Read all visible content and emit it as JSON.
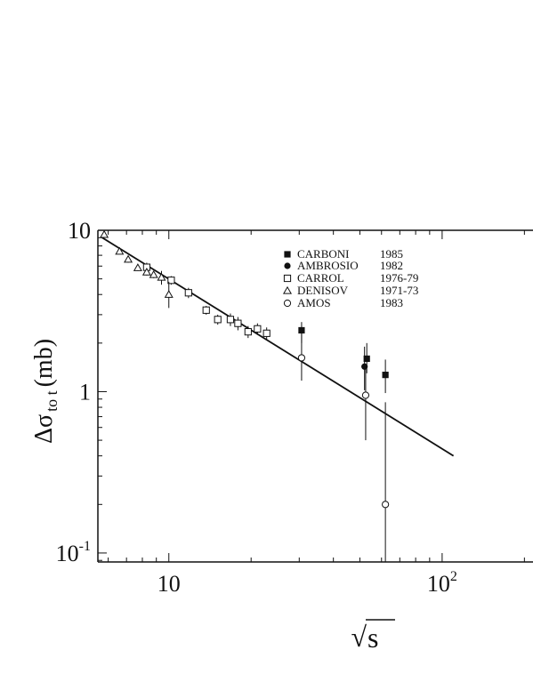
{
  "chart_data": {
    "type": "scatter",
    "xscale": "log",
    "yscale": "log",
    "xlim": [
      5.5,
      215
    ],
    "ylim": [
      0.088,
      10
    ],
    "grid": false,
    "legend_position": "top-center",
    "ylabel": {
      "main": "Δσ",
      "subscript": "to t",
      "unit": "(mb)"
    },
    "xlabel": {
      "radical": "√",
      "symbol": "s"
    },
    "x_ticks": [
      {
        "value": 10,
        "label": "10",
        "base": "",
        "exp": ""
      },
      {
        "value": 100,
        "label": "",
        "base": "10",
        "exp": "2"
      }
    ],
    "y_ticks": [
      {
        "value": 10,
        "label": "10",
        "base": "",
        "exp": ""
      },
      {
        "value": 1,
        "label": "1",
        "base": "",
        "exp": ""
      },
      {
        "value": 0.1,
        "label": "",
        "base": "10",
        "exp": "-1"
      }
    ],
    "fit_line": {
      "x": [
        5.65,
        110
      ],
      "y": [
        9.1,
        0.4
      ]
    },
    "series": [
      {
        "name": "CARBONI",
        "year": "1985",
        "marker": "filled-square",
        "points": [
          {
            "x": 30.6,
            "y": 2.4,
            "ylo": 2.0,
            "yhi": 2.7
          },
          {
            "x": 53.0,
            "y": 1.6,
            "ylo": 1.3,
            "yhi": 2.0
          },
          {
            "x": 62.0,
            "y": 1.27,
            "ylo": 0.98,
            "yhi": 1.58
          }
        ]
      },
      {
        "name": "AMBROSIO",
        "year": "1982",
        "marker": "filled-circle",
        "points": [
          {
            "x": 52.0,
            "y": 1.43,
            "ylo": 1.02,
            "yhi": 1.9
          }
        ]
      },
      {
        "name": "CARROL",
        "year": "1976-79",
        "marker": "open-square",
        "points": [
          {
            "x": 8.3,
            "y": 5.9,
            "ylo": 5.5,
            "yhi": 6.3
          },
          {
            "x": 10.2,
            "y": 4.9,
            "ylo": 4.6,
            "yhi": 5.2
          },
          {
            "x": 11.8,
            "y": 4.1,
            "ylo": 3.8,
            "yhi": 4.4
          },
          {
            "x": 13.7,
            "y": 3.2,
            "ylo": 3.0,
            "yhi": 3.4
          },
          {
            "x": 15.1,
            "y": 2.8,
            "ylo": 2.6,
            "yhi": 3.0
          },
          {
            "x": 16.8,
            "y": 2.8,
            "ylo": 2.55,
            "yhi": 3.05
          },
          {
            "x": 17.9,
            "y": 2.65,
            "ylo": 2.4,
            "yhi": 2.9
          },
          {
            "x": 19.5,
            "y": 2.35,
            "ylo": 2.15,
            "yhi": 2.55
          },
          {
            "x": 21.1,
            "y": 2.45,
            "ylo": 2.25,
            "yhi": 2.65
          },
          {
            "x": 22.8,
            "y": 2.3,
            "ylo": 2.1,
            "yhi": 2.5
          }
        ]
      },
      {
        "name": "DENISOV",
        "year": "1971-73",
        "marker": "open-triangle",
        "points": [
          {
            "x": 5.8,
            "y": 9.4,
            "ylo": 9.0,
            "yhi": 9.8
          },
          {
            "x": 6.6,
            "y": 7.4,
            "ylo": 7.1,
            "yhi": 7.7
          },
          {
            "x": 7.1,
            "y": 6.6,
            "ylo": 6.3,
            "yhi": 6.9
          },
          {
            "x": 7.7,
            "y": 5.85,
            "ylo": 5.6,
            "yhi": 6.1
          },
          {
            "x": 8.3,
            "y": 5.5,
            "ylo": 5.25,
            "yhi": 5.75
          },
          {
            "x": 8.8,
            "y": 5.3,
            "ylo": 5.05,
            "yhi": 5.55
          },
          {
            "x": 9.4,
            "y": 5.1,
            "ylo": 4.6,
            "yhi": 5.6
          },
          {
            "x": 10.0,
            "y": 4.0,
            "ylo": 3.3,
            "yhi": 4.8
          }
        ]
      },
      {
        "name": "AMOS",
        "year": "1983",
        "marker": "open-circle",
        "points": [
          {
            "x": 30.6,
            "y": 1.62,
            "ylo": 1.17,
            "yhi": 2.4
          },
          {
            "x": 52.5,
            "y": 0.95,
            "ylo": 0.5,
            "yhi": 1.43
          },
          {
            "x": 62.0,
            "y": 0.2,
            "ylo": 0.088,
            "yhi": 0.86
          }
        ]
      }
    ]
  }
}
